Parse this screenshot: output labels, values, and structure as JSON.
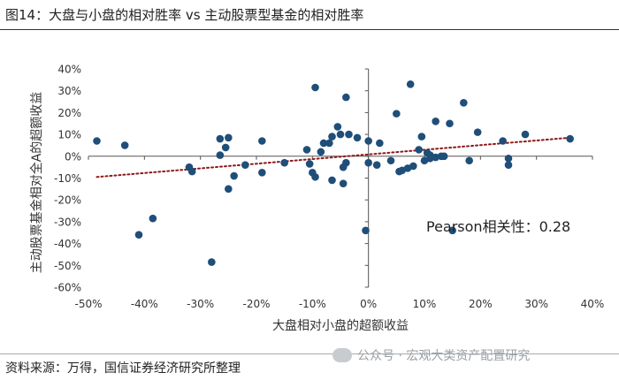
{
  "figure": {
    "title": "图14：大盘与小盘的相对胜率 vs 主动股票型基金的相对胜率",
    "source": "资料来源：万得，国信证券经济研究所整理",
    "watermark": "公众号 · 宏观大类资产配置研究",
    "watermark_icon": "wechat-icon"
  },
  "chart_data": {
    "type": "scatter",
    "xlabel": "大盘相对小盘的超额收益",
    "ylabel": "主动股票基金相对全A的超额收益",
    "xlim": [
      -50,
      40
    ],
    "ylim": [
      -60,
      40
    ],
    "xticks": [
      -50,
      -40,
      -30,
      -20,
      -10,
      0,
      10,
      20,
      30,
      40
    ],
    "yticks": [
      -60,
      -50,
      -40,
      -30,
      -20,
      -10,
      0,
      10,
      20,
      30,
      40
    ],
    "tick_suffix": "%",
    "annotation": "Pearson相关性：0.28",
    "trendline": {
      "style": "dotted",
      "color": "#8B1A1A",
      "x": [
        -48.5,
        36
      ],
      "y": [
        -9.5,
        8.5
      ]
    },
    "point_color": "#1F4E79",
    "points": [
      {
        "x": -48.5,
        "y": 7
      },
      {
        "x": -43.5,
        "y": 5
      },
      {
        "x": -41,
        "y": -36
      },
      {
        "x": -38.5,
        "y": -28.5
      },
      {
        "x": -32,
        "y": -5
      },
      {
        "x": -31.5,
        "y": -7
      },
      {
        "x": -28,
        "y": -48.5
      },
      {
        "x": -26.5,
        "y": 0.5
      },
      {
        "x": -26.5,
        "y": 8
      },
      {
        "x": -25.5,
        "y": 4
      },
      {
        "x": -25,
        "y": 8.5
      },
      {
        "x": -25,
        "y": -15
      },
      {
        "x": -24,
        "y": -9
      },
      {
        "x": -22,
        "y": -4
      },
      {
        "x": -19,
        "y": 7
      },
      {
        "x": -19,
        "y": -7.5
      },
      {
        "x": -15,
        "y": -3
      },
      {
        "x": -11,
        "y": 3
      },
      {
        "x": -10.5,
        "y": -3.5
      },
      {
        "x": -10,
        "y": -7.5
      },
      {
        "x": -9.5,
        "y": -9.5
      },
      {
        "x": -9.5,
        "y": 31.5
      },
      {
        "x": -8.5,
        "y": 2
      },
      {
        "x": -8,
        "y": 6
      },
      {
        "x": -7,
        "y": 6
      },
      {
        "x": -6.5,
        "y": 9
      },
      {
        "x": -6.5,
        "y": -11
      },
      {
        "x": -5.5,
        "y": 13.5
      },
      {
        "x": -5,
        "y": 10
      },
      {
        "x": -4.5,
        "y": -5
      },
      {
        "x": -4.5,
        "y": -12.5
      },
      {
        "x": -4,
        "y": 27
      },
      {
        "x": -4,
        "y": -3
      },
      {
        "x": -3.5,
        "y": 10
      },
      {
        "x": -2,
        "y": 8.5
      },
      {
        "x": -0.5,
        "y": -34
      },
      {
        "x": 0,
        "y": 7
      },
      {
        "x": 0,
        "y": -3
      },
      {
        "x": 1.5,
        "y": -4
      },
      {
        "x": 2,
        "y": 6
      },
      {
        "x": 4,
        "y": -2
      },
      {
        "x": 5,
        "y": 19.5
      },
      {
        "x": 5.5,
        "y": -7
      },
      {
        "x": 6,
        "y": -6.5
      },
      {
        "x": 7,
        "y": -5.5
      },
      {
        "x": 7.5,
        "y": 33
      },
      {
        "x": 8,
        "y": -4.5
      },
      {
        "x": 9,
        "y": 3
      },
      {
        "x": 9.5,
        "y": 9
      },
      {
        "x": 10,
        "y": -2
      },
      {
        "x": 10.5,
        "y": 1.5
      },
      {
        "x": 11,
        "y": 0.5
      },
      {
        "x": 11,
        "y": -1
      },
      {
        "x": 12,
        "y": 16
      },
      {
        "x": 12,
        "y": -0.5
      },
      {
        "x": 13,
        "y": 0
      },
      {
        "x": 13.5,
        "y": 0
      },
      {
        "x": 14.5,
        "y": 15
      },
      {
        "x": 15,
        "y": -34
      },
      {
        "x": 17,
        "y": 24.5
      },
      {
        "x": 18,
        "y": -2
      },
      {
        "x": 19.5,
        "y": 11
      },
      {
        "x": 24,
        "y": 7
      },
      {
        "x": 25,
        "y": -1
      },
      {
        "x": 25,
        "y": -4
      },
      {
        "x": 28,
        "y": 10
      },
      {
        "x": 36,
        "y": 8
      }
    ]
  }
}
